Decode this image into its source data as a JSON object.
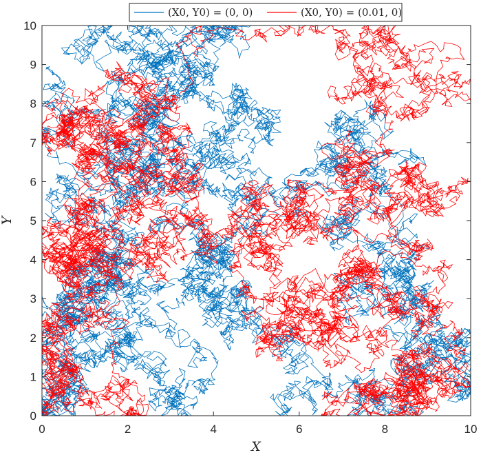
{
  "chart_data": {
    "type": "line",
    "title": "",
    "xlabel": "X",
    "ylabel": "Y",
    "xlim": [
      0,
      10
    ],
    "ylim": [
      0,
      10
    ],
    "x_ticks": [
      "0",
      "2",
      "4",
      "6",
      "8",
      "10"
    ],
    "y_ticks": [
      "0",
      "1",
      "2",
      "3",
      "4",
      "5",
      "6",
      "7",
      "8",
      "9",
      "10"
    ],
    "grid": false,
    "legend_position": "top-outside",
    "series": [
      {
        "name": "(X0, Y0) = (0, 0)",
        "color": "#0072BD",
        "description_points": [
          [
            0.0,
            0.0
          ],
          [
            0.4,
            0.6
          ],
          [
            1.2,
            1.4
          ],
          [
            0.6,
            2.3
          ],
          [
            1.5,
            3.1
          ],
          [
            0.8,
            3.8
          ],
          [
            1.9,
            4.4
          ],
          [
            1.1,
            5.4
          ],
          [
            2.2,
            6.1
          ],
          [
            1.4,
            7.0
          ],
          [
            2.6,
            7.8
          ],
          [
            1.8,
            8.6
          ],
          [
            3.0,
            9.3
          ],
          [
            2.1,
            9.8
          ],
          [
            3.4,
            8.9
          ],
          [
            4.6,
            9.6
          ],
          [
            3.8,
            8.0
          ],
          [
            5.2,
            7.4
          ],
          [
            4.4,
            6.6
          ],
          [
            5.8,
            5.9
          ],
          [
            6.6,
            6.5
          ],
          [
            7.4,
            7.2
          ],
          [
            6.8,
            4.9
          ],
          [
            8.2,
            4.1
          ],
          [
            7.6,
            3.2
          ],
          [
            9.2,
            2.5
          ],
          [
            8.4,
            1.7
          ],
          [
            9.6,
            1.0
          ],
          [
            8.8,
            0.3
          ],
          [
            7.2,
            0.8
          ],
          [
            6.0,
            1.6
          ],
          [
            5.0,
            2.4
          ],
          [
            3.6,
            1.4
          ],
          [
            2.6,
            0.6
          ],
          [
            1.6,
            1.9
          ],
          [
            0.5,
            2.9
          ],
          [
            3.4,
            3.3
          ],
          [
            4.2,
            4.2
          ],
          [
            2.8,
            5.0
          ],
          [
            0.4,
            8.5
          ],
          [
            3.7,
            6.9
          ],
          [
            4.9,
            5.3
          ]
        ]
      },
      {
        "name": "(X0, Y0) = (0.01, 0)",
        "color": "#FF0000",
        "description_points": [
          [
            0.01,
            0.0
          ],
          [
            0.5,
            1.2
          ],
          [
            0.2,
            2.6
          ],
          [
            0.7,
            3.9
          ],
          [
            0.3,
            4.8
          ],
          [
            1.0,
            5.6
          ],
          [
            0.4,
            6.8
          ],
          [
            1.6,
            7.4
          ],
          [
            2.4,
            6.2
          ],
          [
            3.0,
            7.1
          ],
          [
            3.6,
            5.9
          ],
          [
            2.8,
            4.5
          ],
          [
            1.5,
            4.9
          ],
          [
            2.0,
            3.6
          ],
          [
            3.2,
            4.3
          ],
          [
            4.4,
            5.1
          ],
          [
            5.4,
            4.0
          ],
          [
            6.2,
            4.8
          ],
          [
            7.3,
            5.6
          ],
          [
            8.4,
            6.4
          ],
          [
            9.3,
            5.3
          ],
          [
            8.6,
            4.3
          ],
          [
            7.1,
            3.6
          ],
          [
            6.5,
            2.6
          ],
          [
            7.6,
            1.9
          ],
          [
            8.2,
            0.9
          ],
          [
            7.0,
            0.4
          ],
          [
            8.9,
            0.2
          ],
          [
            9.7,
            1.3
          ],
          [
            8.0,
            2.8
          ],
          [
            6.4,
            3.2
          ],
          [
            5.2,
            2.0
          ],
          [
            4.6,
            3.1
          ],
          [
            7.8,
            8.1
          ],
          [
            8.9,
            9.2
          ],
          [
            9.8,
            8.4
          ],
          [
            6.9,
            9.3
          ],
          [
            2.2,
            8.4
          ],
          [
            0.9,
            7.8
          ],
          [
            1.8,
            2.4
          ],
          [
            0.6,
            0.7
          ]
        ]
      }
    ]
  }
}
